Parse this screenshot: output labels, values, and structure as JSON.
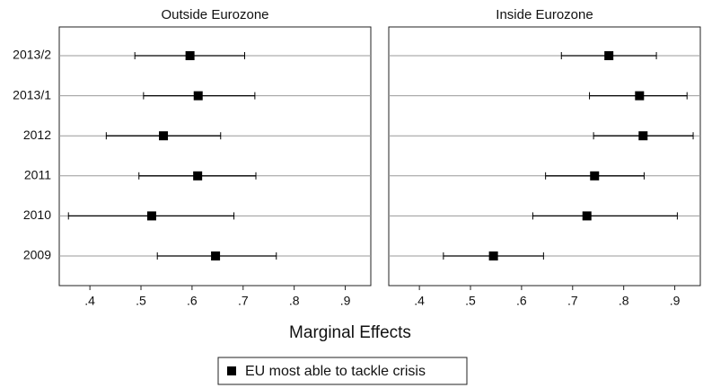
{
  "chart_data": [
    {
      "type": "dotplot",
      "title": "Outside Eurozone",
      "categories": [
        "2013/2",
        "2013/1",
        "2012",
        "2011",
        "2010",
        "2009"
      ],
      "series": [
        {
          "color": "#000000",
          "values": [
            0.596,
            0.612,
            0.544,
            0.611,
            0.521,
            0.646
          ],
          "low": [
            0.488,
            0.505,
            0.432,
            0.496,
            0.358,
            0.532
          ],
          "high": [
            0.703,
            0.723,
            0.656,
            0.725,
            0.682,
            0.765
          ]
        }
      ],
      "xlim": [
        0.34,
        0.95
      ],
      "xticks": [
        {
          "value": 0.4,
          "label": ".4"
        },
        {
          "value": 0.5,
          "label": ".5"
        },
        {
          "value": 0.6,
          "label": ".6"
        },
        {
          "value": 0.7,
          "label": ".7"
        },
        {
          "value": 0.8,
          "label": ".8"
        },
        {
          "value": 0.9,
          "label": ".9"
        }
      ],
      "grid": true
    },
    {
      "type": "dotplot",
      "title": "Inside Eurozone",
      "series": [
        {
          "color": "#000000",
          "values": [
            0.771,
            0.831,
            0.838,
            0.743,
            0.728,
            0.545
          ],
          "low": [
            0.678,
            0.733,
            0.741,
            0.647,
            0.622,
            0.447
          ],
          "high": [
            0.864,
            0.924,
            0.936,
            0.84,
            0.905,
            0.643
          ]
        }
      ],
      "xlim": [
        0.34,
        0.95
      ],
      "xticks": [
        {
          "value": 0.4,
          "label": ".4"
        },
        {
          "value": 0.5,
          "label": ".5"
        },
        {
          "value": 0.6,
          "label": ".6"
        },
        {
          "value": 0.7,
          "label": ".7"
        },
        {
          "value": 0.8,
          "label": ".8"
        },
        {
          "value": 0.9,
          "label": ".9"
        }
      ],
      "grid": true
    }
  ],
  "xlabel": "Marginal Effects",
  "legend": [
    "EU most able to tackle crisis"
  ]
}
